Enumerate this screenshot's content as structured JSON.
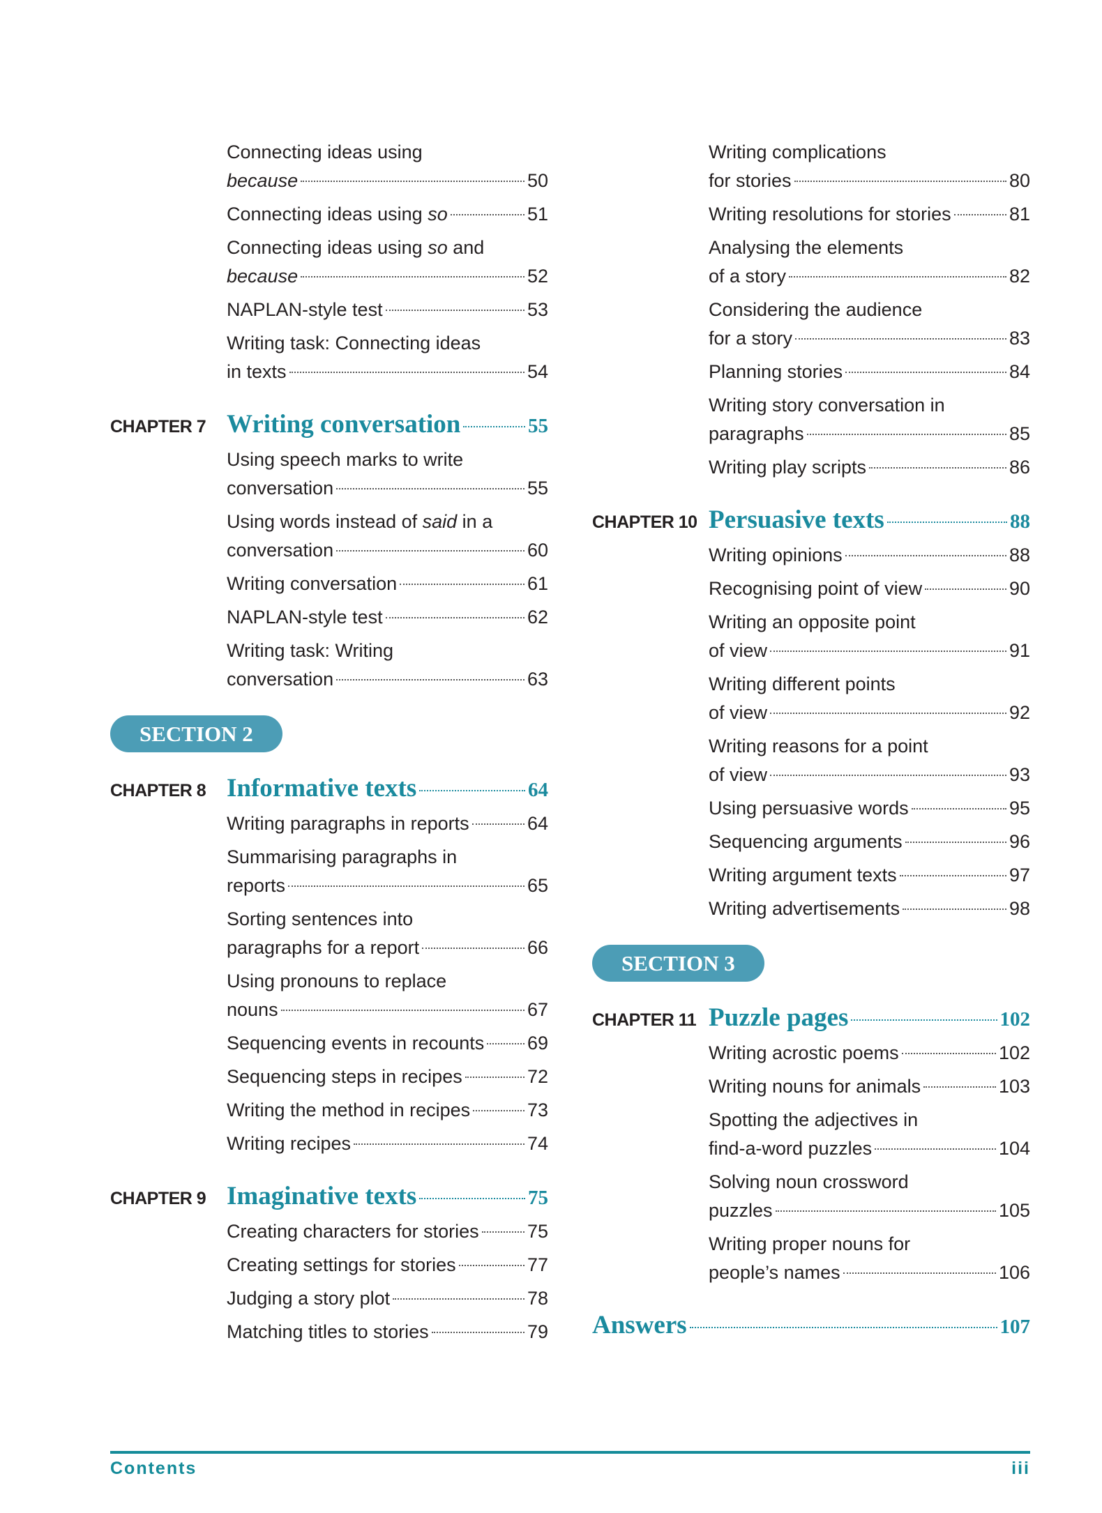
{
  "columns": [
    [
      {
        "type": "entry",
        "lines": [
          [
            {
              "t": "Connecting ideas using"
            }
          ],
          [
            {
              "t": "because",
              "i": true
            }
          ]
        ],
        "page": "50"
      },
      {
        "type": "entry",
        "lines": [
          [
            {
              "t": "Connecting ideas using "
            },
            {
              "t": "so",
              "i": true
            }
          ]
        ],
        "page": "51"
      },
      {
        "type": "entry",
        "lines": [
          [
            {
              "t": "Connecting ideas using "
            },
            {
              "t": "so",
              "i": true
            },
            {
              "t": " and"
            }
          ],
          [
            {
              "t": "because",
              "i": true
            }
          ]
        ],
        "page": "52"
      },
      {
        "type": "entry",
        "lines": [
          [
            {
              "t": "NAPLAN-style test"
            }
          ]
        ],
        "page": "53"
      },
      {
        "type": "entry",
        "lines": [
          [
            {
              "t": "Writing task: Connecting ideas"
            }
          ],
          [
            {
              "t": "in texts"
            }
          ]
        ],
        "page": "54"
      },
      {
        "type": "chapter",
        "label": "CHAPTER 7",
        "title": "Writing conversation",
        "page": "55"
      },
      {
        "type": "entry",
        "lines": [
          [
            {
              "t": "Using speech marks to write"
            }
          ],
          [
            {
              "t": "conversation"
            }
          ]
        ],
        "page": "55"
      },
      {
        "type": "entry",
        "lines": [
          [
            {
              "t": "Using words instead of "
            },
            {
              "t": "said",
              "i": true
            },
            {
              "t": " in a"
            }
          ],
          [
            {
              "t": "conversation"
            }
          ]
        ],
        "page": "60"
      },
      {
        "type": "entry",
        "lines": [
          [
            {
              "t": "Writing conversation"
            }
          ]
        ],
        "page": "61"
      },
      {
        "type": "entry",
        "lines": [
          [
            {
              "t": "NAPLAN-style test"
            }
          ]
        ],
        "page": "62"
      },
      {
        "type": "entry",
        "lines": [
          [
            {
              "t": "Writing task: Writing"
            }
          ],
          [
            {
              "t": "conversation"
            }
          ]
        ],
        "page": "63"
      },
      {
        "type": "section",
        "label": "SECTION 2"
      },
      {
        "type": "chapter",
        "label": "CHAPTER 8",
        "title": "Informative texts",
        "page": "64"
      },
      {
        "type": "entry",
        "lines": [
          [
            {
              "t": "Writing paragraphs in reports"
            }
          ]
        ],
        "page": "64"
      },
      {
        "type": "entry",
        "lines": [
          [
            {
              "t": "Summarising paragraphs in"
            }
          ],
          [
            {
              "t": "reports"
            }
          ]
        ],
        "page": "65"
      },
      {
        "type": "entry",
        "lines": [
          [
            {
              "t": "Sorting sentences into"
            }
          ],
          [
            {
              "t": "paragraphs for a report"
            }
          ]
        ],
        "page": "66"
      },
      {
        "type": "entry",
        "lines": [
          [
            {
              "t": "Using pronouns to replace"
            }
          ],
          [
            {
              "t": "nouns"
            }
          ]
        ],
        "page": "67"
      },
      {
        "type": "entry",
        "lines": [
          [
            {
              "t": "Sequencing events in recounts"
            }
          ]
        ],
        "page": "69"
      },
      {
        "type": "entry",
        "lines": [
          [
            {
              "t": "Sequencing steps in recipes"
            }
          ]
        ],
        "page": "72"
      },
      {
        "type": "entry",
        "lines": [
          [
            {
              "t": "Writing the method in recipes"
            }
          ]
        ],
        "page": "73"
      },
      {
        "type": "entry",
        "lines": [
          [
            {
              "t": "Writing recipes"
            }
          ]
        ],
        "page": "74"
      },
      {
        "type": "chapter",
        "label": "CHAPTER 9",
        "title": "Imaginative texts",
        "page": "75"
      },
      {
        "type": "entry",
        "lines": [
          [
            {
              "t": "Creating characters for stories"
            }
          ]
        ],
        "page": "75"
      },
      {
        "type": "entry",
        "lines": [
          [
            {
              "t": "Creating settings for stories"
            }
          ]
        ],
        "page": "77"
      },
      {
        "type": "entry",
        "lines": [
          [
            {
              "t": "Judging a story plot"
            }
          ]
        ],
        "page": "78"
      },
      {
        "type": "entry",
        "lines": [
          [
            {
              "t": "Matching titles to stories"
            }
          ]
        ],
        "page": "79"
      }
    ],
    [
      {
        "type": "entry",
        "lines": [
          [
            {
              "t": "Writing complications"
            }
          ],
          [
            {
              "t": "for stories"
            }
          ]
        ],
        "page": "80"
      },
      {
        "type": "entry",
        "lines": [
          [
            {
              "t": "Writing resolutions for stories"
            }
          ]
        ],
        "page": "81"
      },
      {
        "type": "entry",
        "lines": [
          [
            {
              "t": "Analysing the elements"
            }
          ],
          [
            {
              "t": "of a story"
            }
          ]
        ],
        "page": "82"
      },
      {
        "type": "entry",
        "lines": [
          [
            {
              "t": "Considering the audience"
            }
          ],
          [
            {
              "t": "for a story"
            }
          ]
        ],
        "page": "83"
      },
      {
        "type": "entry",
        "lines": [
          [
            {
              "t": "Planning stories"
            }
          ]
        ],
        "page": "84"
      },
      {
        "type": "entry",
        "lines": [
          [
            {
              "t": "Writing story conversation in"
            }
          ],
          [
            {
              "t": "paragraphs"
            }
          ]
        ],
        "page": "85"
      },
      {
        "type": "entry",
        "lines": [
          [
            {
              "t": "Writing play scripts"
            }
          ]
        ],
        "page": "86"
      },
      {
        "type": "chapter",
        "label": "CHAPTER 10",
        "title": "Persuasive texts",
        "page": "88"
      },
      {
        "type": "entry",
        "lines": [
          [
            {
              "t": "Writing opinions"
            }
          ]
        ],
        "page": "88"
      },
      {
        "type": "entry",
        "lines": [
          [
            {
              "t": "Recognising point of view"
            }
          ]
        ],
        "page": "90"
      },
      {
        "type": "entry",
        "lines": [
          [
            {
              "t": "Writing an opposite point"
            }
          ],
          [
            {
              "t": "of view"
            }
          ]
        ],
        "page": "91"
      },
      {
        "type": "entry",
        "lines": [
          [
            {
              "t": "Writing different points"
            }
          ],
          [
            {
              "t": "of view"
            }
          ]
        ],
        "page": "92"
      },
      {
        "type": "entry",
        "lines": [
          [
            {
              "t": "Writing reasons for a point"
            }
          ],
          [
            {
              "t": "of view"
            }
          ]
        ],
        "page": "93"
      },
      {
        "type": "entry",
        "lines": [
          [
            {
              "t": "Using persuasive words"
            }
          ]
        ],
        "page": "95"
      },
      {
        "type": "entry",
        "lines": [
          [
            {
              "t": "Sequencing arguments"
            }
          ]
        ],
        "page": "96"
      },
      {
        "type": "entry",
        "lines": [
          [
            {
              "t": "Writing argument texts"
            }
          ]
        ],
        "page": "97"
      },
      {
        "type": "entry",
        "lines": [
          [
            {
              "t": "Writing advertisements"
            }
          ]
        ],
        "page": "98"
      },
      {
        "type": "section",
        "label": "SECTION 3"
      },
      {
        "type": "chapter",
        "label": "CHAPTER 11",
        "title": "Puzzle pages",
        "page": "102"
      },
      {
        "type": "entry",
        "lines": [
          [
            {
              "t": "Writing acrostic poems"
            }
          ]
        ],
        "page": "102"
      },
      {
        "type": "entry",
        "lines": [
          [
            {
              "t": "Writing nouns for animals"
            }
          ]
        ],
        "page": "103"
      },
      {
        "type": "entry",
        "lines": [
          [
            {
              "t": "Spotting the adjectives in"
            }
          ],
          [
            {
              "t": "find-a-word puzzles"
            }
          ]
        ],
        "page": "104"
      },
      {
        "type": "entry",
        "lines": [
          [
            {
              "t": "Solving noun crossword"
            }
          ],
          [
            {
              "t": "puzzles"
            }
          ]
        ],
        "page": "105"
      },
      {
        "type": "entry",
        "lines": [
          [
            {
              "t": "Writing proper nouns for"
            }
          ],
          [
            {
              "t": "people’s names"
            }
          ]
        ],
        "page": "106"
      },
      {
        "type": "chapter",
        "label": "",
        "title": "Answers",
        "page": "107"
      }
    ]
  ],
  "footer": {
    "label": "Contents",
    "page": "iii"
  },
  "colors": {
    "accent": "#1a8a9e",
    "section_badge": "#4c9db6",
    "text": "#231f20"
  }
}
